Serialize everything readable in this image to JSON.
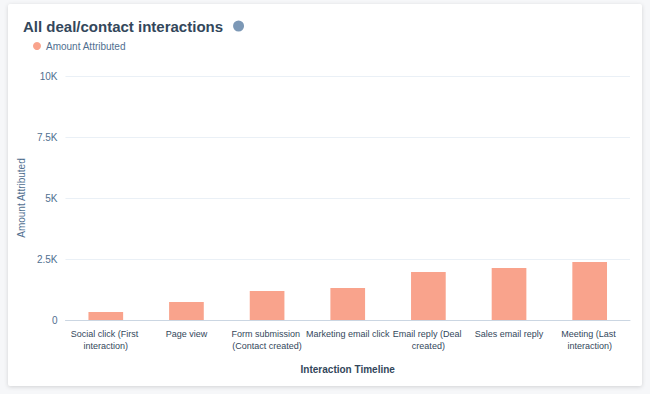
{
  "chart_data": {
    "type": "bar",
    "title": "All deal/contact interactions",
    "legend": "top-left",
    "categories": [
      "Social click (First interaction)",
      "Page view",
      "Form submission (Contact created)",
      "Marketing email click",
      "Email reply (Deal created)",
      "Sales email reply",
      "Meeting (Last interaction)"
    ],
    "series": [
      {
        "name": "Amount Attributed",
        "color": "#f9a38c",
        "values": [
          330,
          740,
          1190,
          1310,
          1970,
          2130,
          2380
        ]
      }
    ],
    "x_label": "Interaction Timeline",
    "y_label": "Amount Attributed",
    "ylim": [
      0,
      10000
    ],
    "yticks": [
      0,
      {
        "value": 2500,
        "label": "2.5K"
      },
      {
        "value": 5000,
        "label": "5K"
      },
      {
        "value": 7500,
        "label": "7.5K"
      },
      {
        "value": 10000,
        "label": "10K"
      }
    ],
    "grid": true
  }
}
